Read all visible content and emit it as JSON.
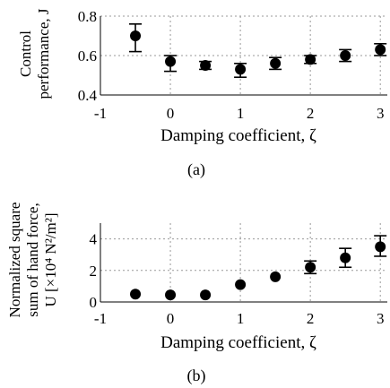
{
  "chart_data": [
    {
      "type": "scatter",
      "caption": "(a)",
      "xlabel": "Damping coefficient, ζ",
      "ylabel_lines": [
        "Control",
        "performance, J"
      ],
      "xlim": [
        -1,
        3.1
      ],
      "ylim": [
        0.4,
        0.8
      ],
      "xticks": [
        "-1",
        "0",
        "1",
        "2",
        "3"
      ],
      "xtick_values": [
        -1,
        0,
        1,
        2,
        3
      ],
      "yticks": [
        "0.4",
        "0.6",
        "0.8"
      ],
      "ytick_values": [
        0.4,
        0.6,
        0.8
      ],
      "grid": true,
      "x": [
        -0.5,
        0,
        0.5,
        1,
        1.5,
        2,
        2.5,
        3
      ],
      "y": [
        0.7,
        0.57,
        0.55,
        0.53,
        0.56,
        0.58,
        0.6,
        0.63
      ],
      "err_low": [
        0.62,
        0.52,
        0.53,
        0.49,
        0.53,
        0.56,
        0.57,
        0.6
      ],
      "err_high": [
        0.76,
        0.6,
        0.57,
        0.56,
        0.59,
        0.6,
        0.63,
        0.66
      ]
    },
    {
      "type": "scatter",
      "caption": "(b)",
      "xlabel": "Damping coefficient, ζ",
      "ylabel_lines": [
        "Normalized square",
        "sum of hand force,",
        "U [×10⁴ N²/m²]"
      ],
      "xlim": [
        -1,
        3.1
      ],
      "ylim": [
        0,
        5
      ],
      "xticks": [
        "-1",
        "0",
        "1",
        "2",
        "3"
      ],
      "xtick_values": [
        -1,
        0,
        1,
        2,
        3
      ],
      "yticks": [
        "0",
        "2",
        "4"
      ],
      "ytick_values": [
        0,
        2,
        4
      ],
      "grid": true,
      "x": [
        -0.5,
        0,
        0.5,
        1,
        1.5,
        2,
        2.5,
        3
      ],
      "y": [
        0.5,
        0.45,
        0.45,
        1.1,
        1.6,
        2.2,
        2.8,
        3.5
      ],
      "err_low": [
        0.45,
        0.4,
        0.4,
        1.0,
        1.5,
        1.8,
        2.2,
        2.9
      ],
      "err_high": [
        0.55,
        0.5,
        0.5,
        1.2,
        1.7,
        2.6,
        3.4,
        4.2
      ]
    }
  ]
}
